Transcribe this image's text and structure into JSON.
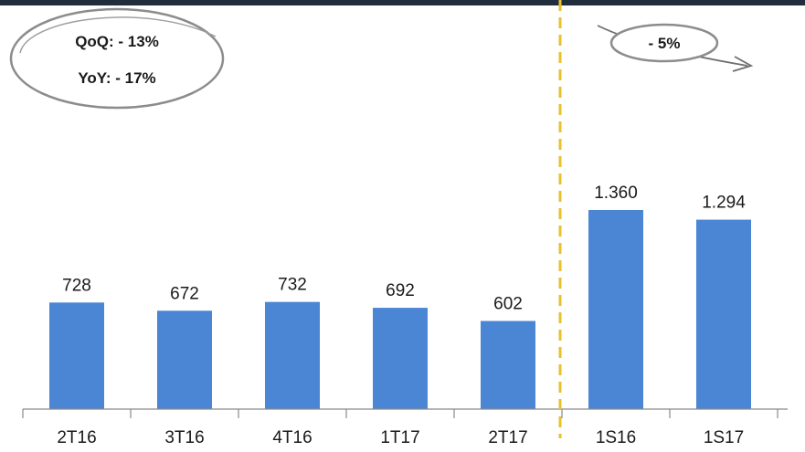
{
  "chart_data": {
    "type": "bar",
    "categories": [
      "2T16",
      "3T16",
      "4T16",
      "1T17",
      "2T17",
      "1S16",
      "1S17"
    ],
    "values": [
      728,
      672,
      732,
      692,
      602,
      1360,
      1294
    ],
    "value_labels": [
      "728",
      "672",
      "732",
      "692",
      "602",
      "1.360",
      "1.294"
    ],
    "title": "",
    "xlabel": "",
    "ylabel": "",
    "ylim": [
      0,
      1500
    ],
    "grid": false,
    "legend": "none",
    "bar_color": "#4a86d4",
    "divider_color": "#e8c22e",
    "header_color": "#1f2d3d"
  },
  "annotations": {
    "quarterly_qoq": "QoQ: - 13%",
    "quarterly_yoy": "YoY: - 17%",
    "semester_change": "- 5%"
  }
}
